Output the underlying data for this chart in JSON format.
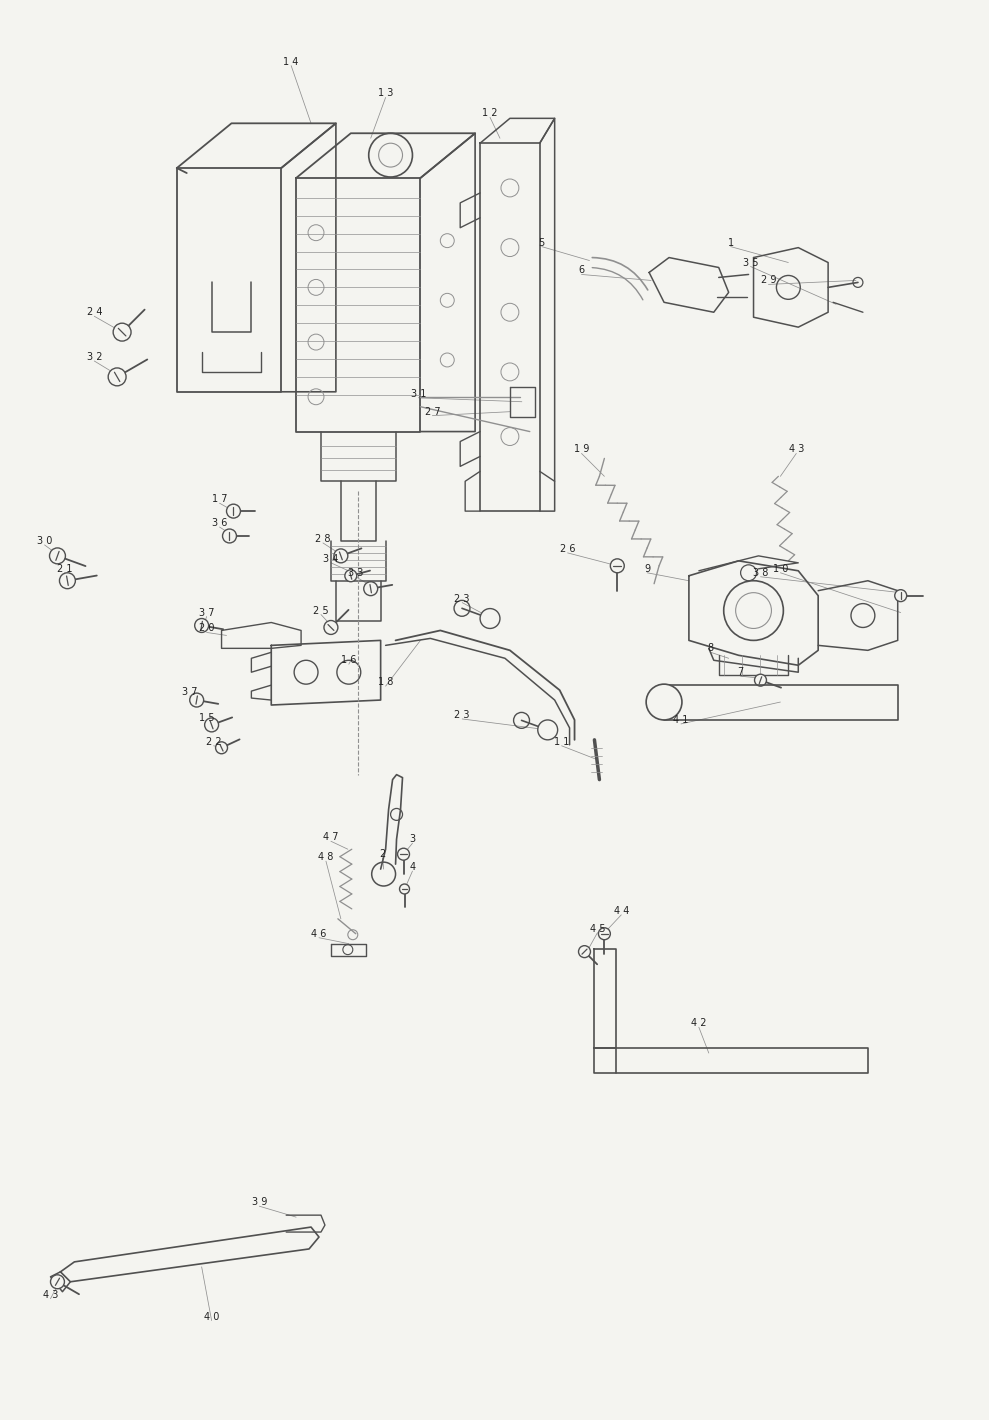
{
  "bg_color": "#f4f4f0",
  "line_color": "#909090",
  "dark_color": "#505050",
  "fig_width": 9.89,
  "fig_height": 14.2,
  "dpi": 100,
  "label_fontsize": 7.0,
  "label_color": "#222222"
}
